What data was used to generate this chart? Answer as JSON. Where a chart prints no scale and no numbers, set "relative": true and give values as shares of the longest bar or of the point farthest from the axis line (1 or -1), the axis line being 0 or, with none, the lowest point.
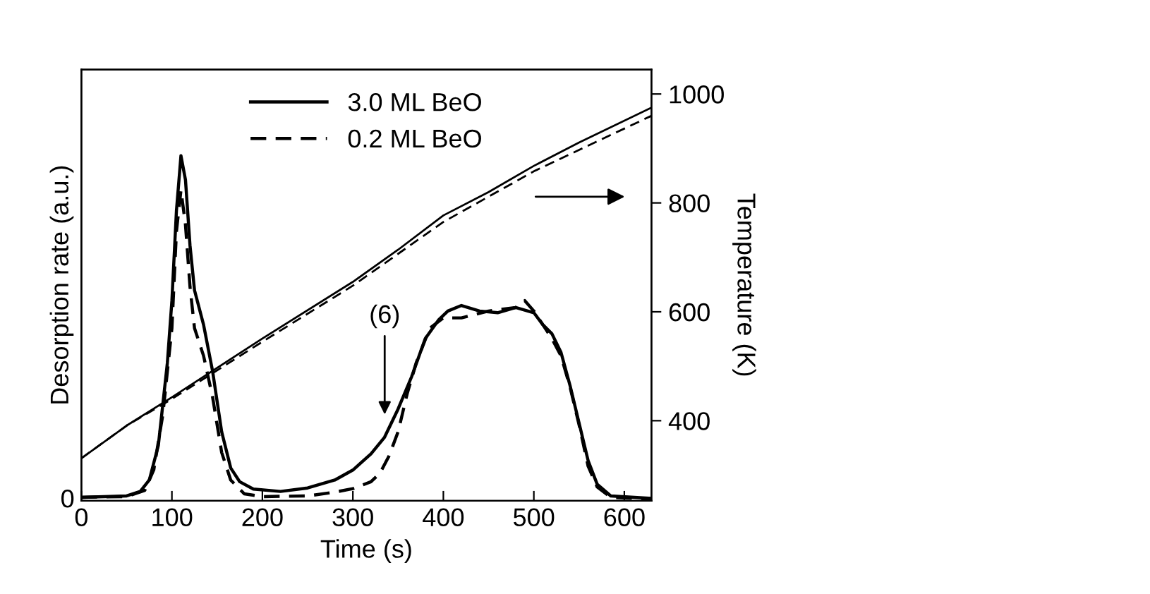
{
  "chart_data": [
    {
      "type": "line",
      "relative": true,
      "xlabel": "Time (s)",
      "ylabel": "Desorption rate (a.u.)",
      "xlim": [
        0,
        630
      ],
      "xticks": [
        0,
        100,
        200,
        300,
        400,
        500,
        600
      ],
      "legend": "top",
      "annotations": [
        "(6)",
        "0"
      ],
      "series": [
        {
          "name": "3.0 ML BeO",
          "color": "#000000",
          "line_style": "solid",
          "x": [
            0,
            50,
            65,
            75,
            85,
            95,
            100,
            105,
            110,
            115,
            120,
            125,
            135,
            145,
            155,
            165,
            175,
            190,
            220,
            250,
            280,
            300,
            320,
            335,
            350,
            365,
            380,
            395,
            405,
            420,
            440,
            460,
            480,
            500,
            510,
            520,
            530,
            540,
            550,
            560,
            570,
            585,
            630
          ],
          "values": [
            0.01,
            0.014,
            0.027,
            0.06,
            0.16,
            0.4,
            0.58,
            0.84,
            1.0,
            0.93,
            0.74,
            0.61,
            0.51,
            0.375,
            0.2,
            0.095,
            0.055,
            0.034,
            0.027,
            0.037,
            0.06,
            0.089,
            0.136,
            0.184,
            0.266,
            0.36,
            0.47,
            0.525,
            0.55,
            0.566,
            0.55,
            0.545,
            0.56,
            0.545,
            0.51,
            0.484,
            0.43,
            0.334,
            0.225,
            0.116,
            0.048,
            0.014,
            0.007
          ]
        },
        {
          "name": "0.2 ML BeO",
          "color": "#000000",
          "line_style": "dashed",
          "x": [
            0,
            50,
            70,
            80,
            90,
            100,
            105,
            110,
            115,
            120,
            125,
            135,
            145,
            155,
            165,
            180,
            200,
            250,
            280,
            300,
            320,
            330,
            340,
            350,
            360,
            370,
            385,
            400,
            420,
            450,
            480,
            490,
            500,
            510,
            520,
            530,
            540,
            550,
            560,
            570,
            585,
            630
          ],
          "values": [
            0.01,
            0.012,
            0.03,
            0.09,
            0.25,
            0.5,
            0.78,
            0.9,
            0.8,
            0.62,
            0.5,
            0.42,
            0.3,
            0.14,
            0.06,
            0.02,
            0.012,
            0.014,
            0.025,
            0.035,
            0.055,
            0.08,
            0.13,
            0.2,
            0.31,
            0.4,
            0.5,
            0.53,
            0.53,
            0.55,
            0.56,
            0.58,
            0.55,
            0.51,
            0.47,
            0.42,
            0.33,
            0.22,
            0.1,
            0.04,
            0.01,
            0.005
          ]
        }
      ]
    },
    {
      "type": "line",
      "ylabel": "Temperature (K)",
      "xlim": [
        0,
        630
      ],
      "ylim": [
        253,
        1045
      ],
      "yticks": [
        400,
        600,
        800,
        1000
      ],
      "tick_labels": "y",
      "series": [
        {
          "color": "#000000",
          "line_style": "solid",
          "x": [
            0,
            50,
            100,
            200,
            300,
            350,
            400,
            450,
            500,
            550,
            630
          ],
          "values": [
            331,
            391,
            443,
            551,
            655,
            714,
            777,
            820,
            868,
            911,
            975
          ]
        },
        {
          "color": "#000000",
          "line_style": "dashed",
          "x": [
            0,
            50,
            100,
            200,
            300,
            400,
            500,
            630
          ],
          "values": [
            331,
            391,
            440,
            545,
            648,
            765,
            858,
            960
          ]
        }
      ]
    }
  ]
}
